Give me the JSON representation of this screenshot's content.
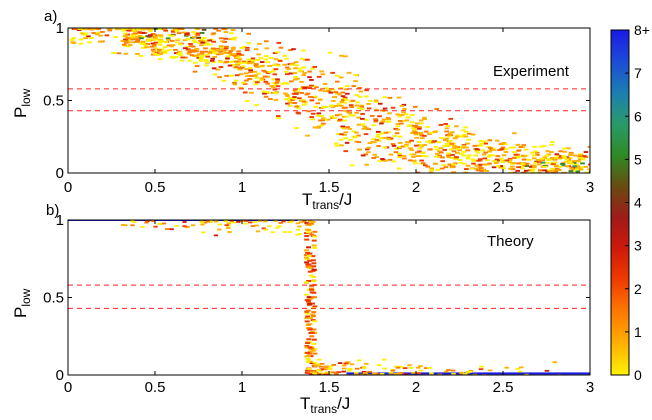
{
  "chart_data": [
    {
      "type": "heatmap",
      "panel_label": "a)",
      "annotation": "Experiment",
      "xlabel_main": "T",
      "xlabel_sub": "trans",
      "xlabel_suffix": "/J",
      "ylabel_main": "P",
      "ylabel_sub": "low",
      "xlim": [
        0,
        3
      ],
      "ylim": [
        0,
        1
      ],
      "xticks": [
        "0",
        "0.5",
        "1",
        "1.5",
        "2",
        "2.5",
        "3"
      ],
      "yticks": [
        "0",
        "0.5",
        "1"
      ],
      "dashed_lines_y": [
        0.58,
        0.43
      ],
      "trend": {
        "description": "noisy decreasing transition",
        "x": [
          0,
          0.3,
          0.6,
          0.9,
          1.2,
          1.5,
          1.8,
          2.1,
          2.4,
          2.7,
          3.0
        ],
        "y": [
          0.98,
          0.96,
          0.92,
          0.82,
          0.66,
          0.5,
          0.3,
          0.17,
          0.1,
          0.07,
          0.05
        ]
      }
    },
    {
      "type": "heatmap",
      "panel_label": "b)",
      "annotation": "Theory",
      "xlabel_main": "T",
      "xlabel_sub": "trans",
      "xlabel_suffix": "/J",
      "ylabel_main": "P",
      "ylabel_sub": "low",
      "xlim": [
        0,
        3
      ],
      "ylim": [
        0,
        1
      ],
      "xticks": [
        "0",
        "0.5",
        "1",
        "1.5",
        "2",
        "2.5",
        "3"
      ],
      "yticks": [
        "0",
        "0.5",
        "1"
      ],
      "dashed_lines_y": [
        0.58,
        0.43
      ],
      "trend": {
        "description": "sharp step near 1.4",
        "x": [
          0,
          1.3,
          1.37,
          1.4,
          1.45,
          3.0
        ],
        "y": [
          1.0,
          1.0,
          0.98,
          0.5,
          0.02,
          0.0
        ]
      }
    }
  ],
  "colorbar": {
    "ticks": [
      "0",
      "1",
      "2",
      "3",
      "4",
      "5",
      "6",
      "7",
      "8+"
    ],
    "range": [
      0,
      8
    ],
    "colors": [
      "#fff200",
      "#ffb000",
      "#ff7a00",
      "#f03c00",
      "#d01a0a",
      "#a01a1a",
      "#6a4a10",
      "#2f8a25",
      "#2a9a6a",
      "#1b7fb0",
      "#1d4cd6",
      "#1a1ae6"
    ]
  }
}
